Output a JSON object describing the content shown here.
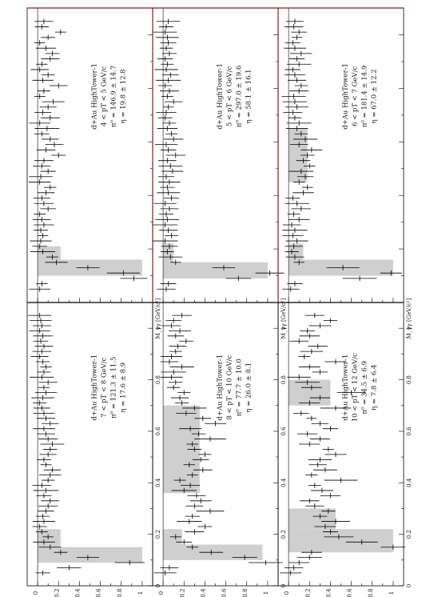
{
  "chart_data": {
    "type": "bar",
    "orientation": "figure rotated 90 degrees counter-clockwise (portrait page, landscape figure)",
    "x_axis": {
      "label": "M_γγ [GeV/c²]",
      "range": [
        0,
        1.1
      ],
      "ticks": [
        "0",
        "0.2",
        "0.4",
        "0.6",
        "0.8",
        "1"
      ]
    },
    "y_axis": {
      "range": [
        -0.1,
        1.1
      ],
      "ticks": [
        "0",
        "0.2",
        "0.4",
        "0.6",
        "0.8",
        "1"
      ]
    },
    "bins": [
      0.05,
      0.07,
      0.09,
      0.11,
      0.13,
      0.15,
      0.17,
      0.19,
      0.21,
      0.23,
      0.25,
      0.27,
      0.29,
      0.31,
      0.33,
      0.35,
      0.37,
      0.39,
      0.41,
      0.43,
      0.45,
      0.47,
      0.49,
      0.51,
      0.53,
      0.55,
      0.57,
      0.59,
      0.61,
      0.63,
      0.65,
      0.67,
      0.69,
      0.71,
      0.73,
      0.75,
      0.77,
      0.79,
      0.81,
      0.83,
      0.85,
      0.87,
      0.89,
      0.91,
      0.93,
      0.95,
      0.97,
      0.99,
      1.01,
      1.03,
      1.05
    ],
    "panels": [
      {
        "annotation": [
          "d+Au HighTower-1",
          "4 < pT < 5 GeV/c",
          "π⁰ = 146.9 ± 14.7",
          "η = 19.8 ± 12.8"
        ],
        "show_xlabel": false,
        "fill": [
          [
            0.1,
            0.16,
            1.0
          ],
          [
            0.16,
            0.21,
            0.22
          ]
        ],
        "values": [
          0.02,
          0.04,
          0.92,
          0.82,
          0.48,
          0.18,
          0.14,
          0.05,
          0.02,
          0.03,
          0.05,
          0.03,
          0.06,
          0.04,
          0.02,
          0.1,
          0.06,
          0.04,
          0.08,
          0.12,
          0.02,
          0.03,
          0.1,
          0.04,
          0.06,
          0.2,
          0.08,
          0.16,
          0.12,
          0.04,
          0.09,
          0.02,
          0.12,
          0.05,
          0.1,
          0.15,
          0.02,
          0.06,
          0.2,
          0.05,
          0.1,
          0.02,
          0.04,
          0.12,
          0.14,
          0.08,
          0.02,
          0.1,
          0.22,
          0.04,
          0.06
        ]
      },
      {
        "annotation": [
          "d+Au HighTower-1",
          "5 < pT < 6 GeV/c",
          "π⁰ = 297.0 ± 19.6",
          "η = 58.1 ± 16.1"
        ],
        "show_xlabel": false,
        "fill": [
          [
            0.09,
            0.15,
            1.0
          ],
          [
            0.15,
            0.22,
            0.1
          ]
        ],
        "values": [
          0.03,
          0.05,
          0.72,
          1.02,
          0.58,
          0.12,
          0.07,
          0.04,
          0.06,
          0.02,
          0.08,
          0.05,
          0.02,
          0.04,
          0.03,
          0.06,
          0.02,
          0.08,
          0.05,
          0.04,
          0.06,
          0.03,
          0.09,
          0.07,
          0.04,
          0.12,
          0.05,
          0.03,
          0.1,
          0.08,
          0.04,
          0.06,
          0.02,
          0.03,
          0.05,
          0.1,
          0.04,
          0.06,
          0.02,
          0.05,
          0.07,
          0.03,
          0.04,
          0.02,
          0.06,
          0.03,
          0.05,
          0.04,
          0.02,
          0.03,
          0.05
        ]
      },
      {
        "annotation": [
          "d+Au HighTower-1",
          "6 < pT < 7 GeV/c",
          "π⁰ = 181.4 ± 14.9",
          "η = 67.0 ± 12.2"
        ],
        "show_xlabel": false,
        "fill": [
          [
            0.1,
            0.16,
            1.0
          ],
          [
            0.16,
            0.22,
            0.14
          ],
          [
            0.45,
            0.65,
            0.18
          ]
        ],
        "values": [
          0.02,
          0.06,
          0.68,
          0.98,
          0.52,
          0.1,
          0.06,
          0.03,
          0.05,
          0.08,
          0.04,
          0.06,
          0.03,
          0.1,
          0.05,
          0.12,
          0.08,
          0.04,
          0.14,
          0.18,
          0.1,
          0.16,
          0.12,
          0.2,
          0.14,
          0.18,
          0.22,
          0.1,
          0.16,
          0.12,
          0.08,
          0.1,
          0.06,
          0.04,
          0.08,
          0.06,
          0.05,
          0.1,
          0.12,
          0.08,
          0.06,
          0.04,
          0.1,
          0.08,
          0.12,
          0.06,
          0.04,
          0.08,
          0.1,
          0.05,
          0.06
        ]
      },
      {
        "annotation": [
          "d+Au HighTower-1",
          "7 < pT < 8 GeV/c",
          "π⁰ = 121.3 ± 11.5",
          "η = 17.6 ± 8.9"
        ],
        "show_xlabel": true,
        "fill": [
          [
            0.09,
            0.15,
            1.0
          ],
          [
            0.15,
            0.22,
            0.22
          ]
        ],
        "values": [
          0.05,
          0.3,
          0.88,
          0.48,
          0.22,
          0.12,
          0.06,
          0.1,
          0.04,
          0.02,
          0.06,
          0.05,
          0.08,
          0.1,
          0.12,
          0.06,
          0.08,
          0.04,
          0.1,
          0.12,
          0.14,
          0.08,
          0.06,
          0.1,
          0.12,
          0.14,
          0.1,
          0.08,
          0.06,
          0.12,
          0.08,
          0.06,
          0.04,
          0.02,
          0.05,
          0.08,
          0.06,
          0.1,
          0.04,
          0.06,
          0.08,
          0.05,
          0.02,
          0.04,
          0.06,
          0.03,
          0.05,
          0.02,
          0.04,
          0.03,
          0.02
        ]
      },
      {
        "annotation": [
          "d+Au HighTower-1",
          "8 < pT < 10 GeV/c",
          "π⁰ = 77.7 ± 10.0",
          "η = 26.0 ± 8.1"
        ],
        "show_xlabel": true,
        "fill": [
          [
            0.1,
            0.16,
            0.95
          ],
          [
            0.16,
            0.22,
            0.18
          ],
          [
            0.36,
            0.7,
            0.35
          ]
        ],
        "values": [
          0.02,
          0.06,
          0.98,
          0.78,
          0.46,
          0.28,
          0.2,
          0.12,
          0.3,
          0.4,
          0.25,
          0.28,
          0.45,
          0.3,
          0.36,
          0.32,
          0.2,
          0.26,
          0.16,
          0.28,
          0.38,
          0.25,
          0.36,
          0.4,
          0.3,
          0.28,
          0.45,
          0.34,
          0.26,
          0.5,
          0.38,
          0.22,
          0.3,
          0.18,
          0.16,
          0.2,
          0.1,
          0.12,
          0.08,
          0.1,
          0.18,
          0.06,
          0.08,
          0.12,
          0.14,
          0.22,
          0.12,
          0.16,
          0.08,
          0.1,
          0.18
        ]
      },
      {
        "annotation": [
          "d+Au HighTower-1",
          "10 < pT < 12 GeV/c",
          "π⁰ = 34.5 ± 6.9",
          "η = 7.8 ± 6.4"
        ],
        "show_xlabel": true,
        "fill": [
          [
            0.13,
            0.22,
            1.0
          ],
          [
            0.22,
            0.3,
            0.45
          ],
          [
            0.7,
            0.8,
            0.4
          ]
        ],
        "values": [
          0.02,
          0.05,
          0.1,
          0.2,
          0.22,
          1.0,
          0.7,
          0.48,
          0.4,
          0.35,
          0.45,
          0.3,
          0.38,
          0.25,
          0.2,
          0.4,
          0.32,
          0.25,
          0.5,
          0.22,
          0.35,
          0.28,
          0.3,
          0.45,
          0.38,
          0.2,
          0.3,
          0.18,
          0.4,
          0.3,
          0.22,
          0.12,
          0.45,
          0.2,
          0.3,
          0.6,
          0.22,
          0.18,
          0.1,
          0.3,
          0.2,
          0.45,
          0.15,
          0.22,
          0.28,
          0.1,
          0.2,
          0.18,
          0.3,
          0.4,
          0.25
        ]
      }
    ]
  }
}
